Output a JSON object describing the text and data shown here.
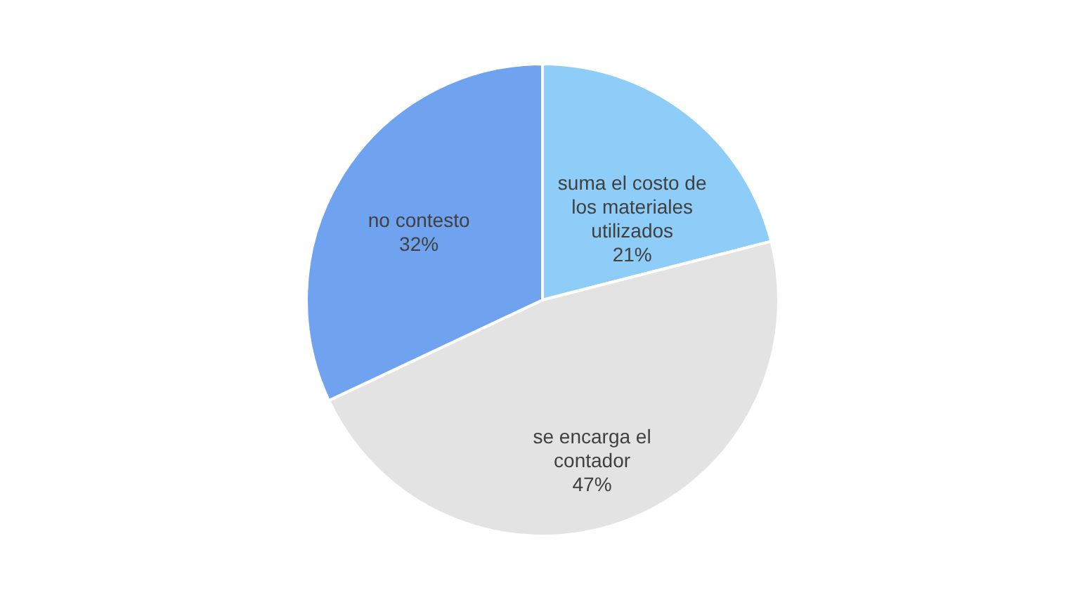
{
  "chart_data": {
    "type": "pie",
    "categories": [
      "suma el costo de los materiales utilizados",
      "se encarga el contador",
      "no contesto"
    ],
    "values": [
      21,
      47,
      32
    ],
    "colors": [
      "#8dcdf7",
      "#e3e3e3",
      "#6fa3ef"
    ],
    "value_labels": [
      "21%",
      "47%",
      "32%"
    ],
    "legend": false
  }
}
